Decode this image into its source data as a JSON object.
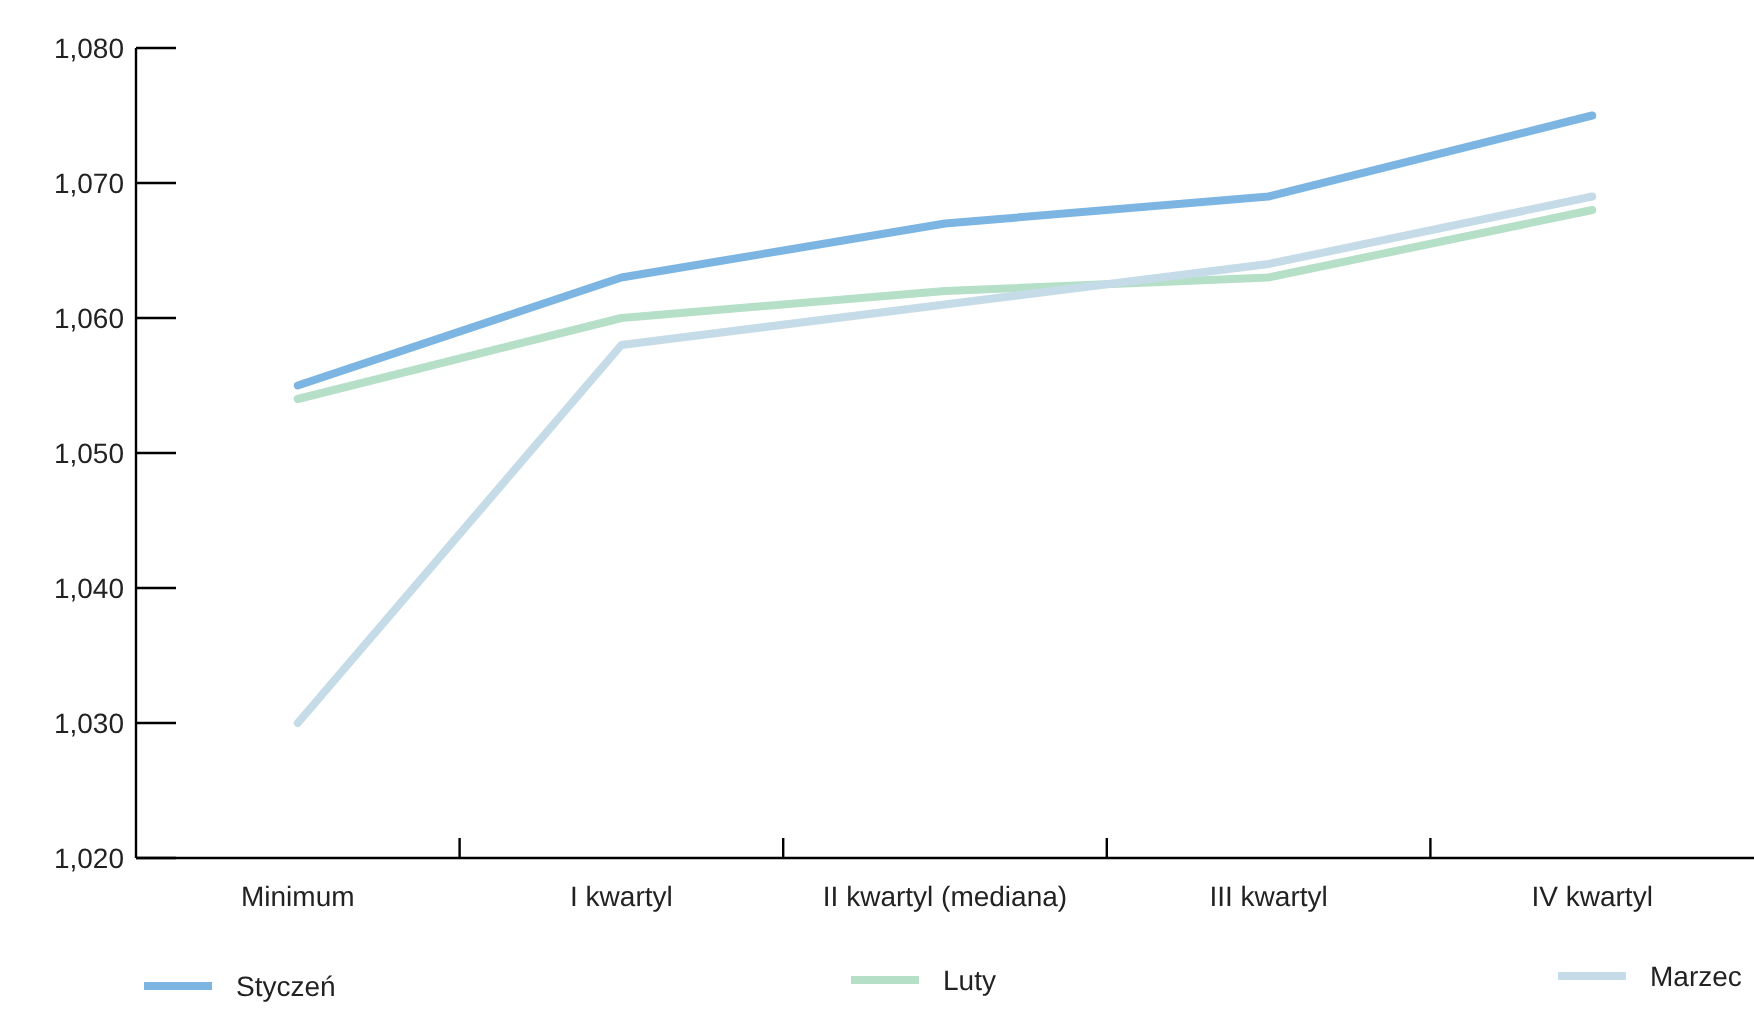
{
  "chart_data": {
    "type": "line",
    "categories": [
      "Minimum",
      "I kwartyl",
      "II kwartyl (mediana)",
      "III kwartyl",
      "IV kwartyl"
    ],
    "ylim": [
      1020,
      1080
    ],
    "yticks": [
      {
        "value": 1020,
        "label": "1,020"
      },
      {
        "value": 1030,
        "label": "1,030"
      },
      {
        "value": 1040,
        "label": "1,040"
      },
      {
        "value": 1050,
        "label": "1,050"
      },
      {
        "value": 1060,
        "label": "1,060"
      },
      {
        "value": 1070,
        "label": "1,070"
      },
      {
        "value": 1080,
        "label": "1,080"
      }
    ],
    "series": [
      {
        "name": "Styczeń",
        "color": "#7cb5e2",
        "values": [
          1055,
          1063,
          1067,
          1069,
          1075
        ]
      },
      {
        "name": "Luty",
        "color": "#b5dfc7",
        "values": [
          1054,
          1060,
          1062,
          1063,
          1068
        ]
      },
      {
        "name": "Marzec",
        "color": "#c5dbe8",
        "values": [
          1030,
          1058,
          1061,
          1064,
          1069
        ]
      }
    ],
    "grid": false,
    "legend": "bottom",
    "marker": "none",
    "line_style": "solid"
  }
}
